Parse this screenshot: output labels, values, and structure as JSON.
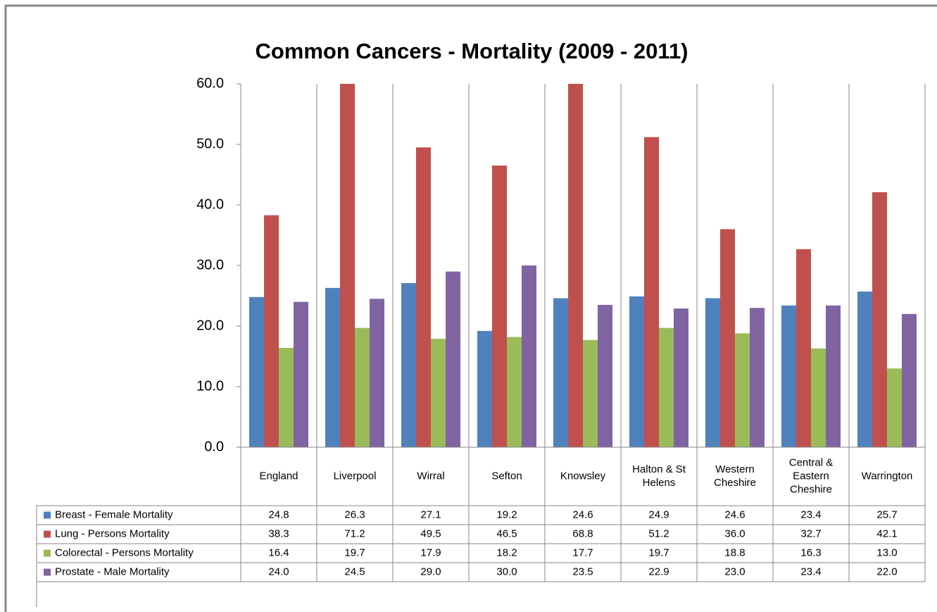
{
  "chart_data": {
    "type": "bar",
    "title": "Common Cancers - Mortality (2009 - 2011)",
    "categories": [
      "England",
      "Liverpool",
      "Wirral",
      "Sefton",
      "Knowsley",
      "Halton & St Helens",
      "Western Cheshire",
      "Central & Eastern Cheshire",
      "Warrington"
    ],
    "series": [
      {
        "name": "Breast - Female Mortality",
        "color": "#4f81bd",
        "values": [
          24.8,
          26.3,
          27.1,
          19.2,
          24.6,
          24.9,
          24.6,
          23.4,
          25.7
        ],
        "value_labels": [
          "24.8",
          "26.3",
          "27.1",
          "19.2",
          "24.6",
          "24.9",
          "24.6",
          "23.4",
          "25.7"
        ]
      },
      {
        "name": "Lung - Persons Mortality",
        "color": "#c0504d",
        "values": [
          38.3,
          71.2,
          49.5,
          46.5,
          68.8,
          51.2,
          36.0,
          32.7,
          42.1
        ],
        "value_labels": [
          "38.3",
          "71.2",
          "49.5",
          "46.5",
          "68.8",
          "51.2",
          "36.0",
          "32.7",
          "42.1"
        ]
      },
      {
        "name": "Colorectal - Persons Mortality",
        "color": "#9bbb59",
        "values": [
          16.4,
          19.7,
          17.9,
          18.2,
          17.7,
          19.7,
          18.8,
          16.3,
          13.0
        ],
        "value_labels": [
          "16.4",
          "19.7",
          "17.9",
          "18.2",
          "17.7",
          "19.7",
          "18.8",
          "16.3",
          "13.0"
        ]
      },
      {
        "name": "Prostate - Male Mortality",
        "color": "#8064a2",
        "values": [
          24.0,
          24.5,
          29.0,
          30.0,
          23.5,
          22.9,
          23.0,
          23.4,
          22.0
        ],
        "value_labels": [
          "24.0",
          "24.5",
          "29.0",
          "30.0",
          "23.5",
          "22.9",
          "23.0",
          "23.4",
          "22.0"
        ]
      }
    ],
    "ylim": [
      0,
      60
    ],
    "yticks": [
      {
        "value": 0,
        "label": "0.0"
      },
      {
        "value": 10,
        "label": "10.0"
      },
      {
        "value": 20,
        "label": "20.0"
      },
      {
        "value": 30,
        "label": "30.0"
      },
      {
        "value": 40,
        "label": "40.0"
      },
      {
        "value": 50,
        "label": "50.0"
      },
      {
        "value": 60,
        "label": "60.0"
      }
    ],
    "grid": true
  }
}
